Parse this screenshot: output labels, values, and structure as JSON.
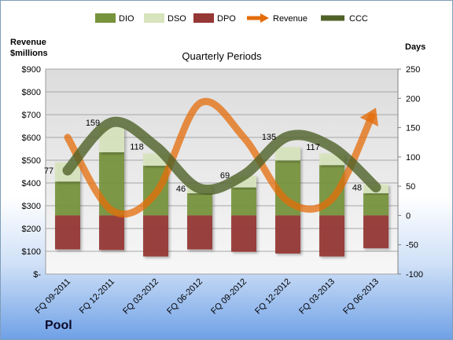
{
  "company": "Pool",
  "colors": {
    "DIO": "#77933c",
    "DSO": "#d7e4bd",
    "DPO": "#953735",
    "Revenue": "#e46c0a",
    "CCC": "#4f6228"
  },
  "chart_data": {
    "type": "bar",
    "subtitle": "Quarterly Periods",
    "left_axis_title": [
      "Revenue",
      "$millions"
    ],
    "right_axis_title": "Days",
    "categories": [
      "FQ 09-2011",
      "FQ 12-2011",
      "FQ 03-2012",
      "FQ 06-2012",
      "FQ 09-2012",
      "FQ 12-2012",
      "FQ 03-2013",
      "FQ 06-2013"
    ],
    "left_ticks": [
      "$-",
      "$100",
      "$200",
      "$300",
      "$400",
      "$500",
      "$600",
      "$700",
      "$800",
      "$900"
    ],
    "left_ylim": [
      0,
      900
    ],
    "right_ticks": [
      "-100",
      "-50",
      "0",
      "50",
      "100",
      "150",
      "200",
      "250"
    ],
    "right_ylim": [
      -100,
      250
    ],
    "legend": [
      "DIO",
      "DSO",
      "DPO",
      "Revenue",
      "CCC"
    ],
    "legend_position": "top",
    "grid": true,
    "series": [
      {
        "name": "DIO",
        "axis": "right",
        "type": "stacked-bar",
        "values": [
          58,
          108,
          85,
          38,
          48,
          94,
          86,
          38
        ]
      },
      {
        "name": "DSO",
        "axis": "right",
        "type": "stacked-bar",
        "values": [
          33,
          43,
          21,
          15,
          20,
          23,
          20,
          15
        ]
      },
      {
        "name": "DPO",
        "axis": "right",
        "type": "negative-bar",
        "values": [
          -58,
          -59,
          -70,
          -58,
          -62,
          -65,
          -70,
          -56
        ]
      },
      {
        "name": "Revenue",
        "axis": "left",
        "type": "line",
        "values": [
          600,
          280,
          355,
          750,
          600,
          320,
          330,
          730
        ]
      },
      {
        "name": "CCC",
        "axis": "right",
        "type": "line",
        "values": [
          77,
          159,
          118,
          46,
          69,
          135,
          117,
          48
        ],
        "labels": [
          "77",
          "159",
          "118",
          "46",
          "69",
          "135",
          "117",
          "48"
        ]
      }
    ]
  }
}
